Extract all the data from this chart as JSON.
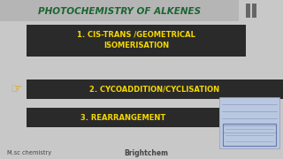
{
  "bg_color": "#c8c8c8",
  "title": "PHOTOCHEMISTRY OF ALKENES",
  "title_color": "#1a6632",
  "title_bg": "#b8b8b8",
  "items": [
    {
      "line1": "1. CIS-TRANS /GEOMETRICAL",
      "line2": "ISOMERISATION",
      "bg": "#2a2a2a",
      "text_color": "#f5d800"
    },
    {
      "line1": "2. CYCOADDITION/CYCLISATION",
      "line2": "",
      "bg": "#2a2a2a",
      "text_color": "#f5d800"
    },
    {
      "line1": "3. REARRANGEMENT",
      "line2": "",
      "bg": "#2a2a2a",
      "text_color": "#f5d800"
    }
  ],
  "pointer_color": "#e8a000",
  "footer_left": "M.sc chemistry",
  "footer_right": "Brightchem",
  "footer_color": "#444444",
  "pause_color": "#666666",
  "note_bg": "#b8c8e0",
  "note_line_color": "#8888aa",
  "note_box_color": "#6677aa"
}
